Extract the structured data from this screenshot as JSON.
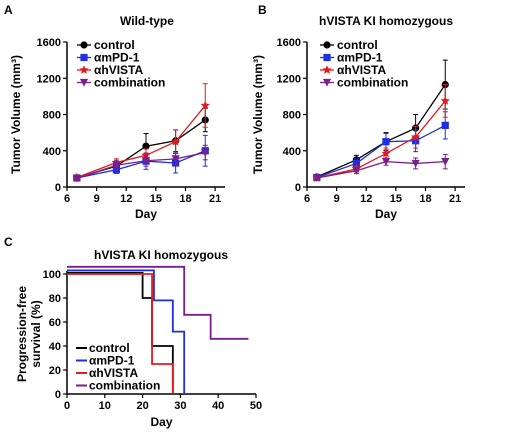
{
  "panel_letters": [
    "A",
    "B",
    "C"
  ],
  "colors": {
    "control": "#000000",
    "ampd1": "#1f2ee0",
    "ahvista": "#e41a1c",
    "combination": "#7b1f8c"
  },
  "chart_data": [
    {
      "id": "A",
      "type": "line",
      "title": "Wild-type",
      "xlabel": "Day",
      "ylabel": "Tumor Volume (mm³)",
      "xlim": [
        6,
        22
      ],
      "ylim": [
        0,
        1600
      ],
      "xticks": [
        "6",
        "9",
        "12",
        "15",
        "18",
        "21"
      ],
      "yticks": [
        "0",
        "400",
        "800",
        "1200",
        "1600"
      ],
      "legend_position": "top-left",
      "series": [
        {
          "name": "control",
          "color": "#000000",
          "marker": "circle",
          "x": [
            7,
            11,
            14,
            17,
            20
          ],
          "y": [
            100,
            230,
            450,
            510,
            740
          ],
          "err": [
            20,
            40,
            140,
            120,
            130
          ]
        },
        {
          "name": "αmPD-1",
          "color": "#1f2ee0",
          "marker": "square",
          "x": [
            7,
            11,
            14,
            17,
            20
          ],
          "y": [
            100,
            190,
            285,
            265,
            400
          ],
          "err": [
            20,
            40,
            90,
            110,
            170
          ]
        },
        {
          "name": "αhVISTA",
          "color": "#e41a1c",
          "marker": "star",
          "x": [
            7,
            11,
            14,
            17,
            20
          ],
          "y": [
            105,
            270,
            350,
            500,
            900
          ],
          "err": [
            20,
            40,
            70,
            130,
            240
          ]
        },
        {
          "name": "combination",
          "color": "#7b1f8c",
          "marker": "triangle-down",
          "x": [
            7,
            11,
            14,
            17,
            20
          ],
          "y": [
            95,
            240,
            290,
            310,
            380
          ],
          "err": [
            20,
            50,
            60,
            60,
            80
          ]
        }
      ]
    },
    {
      "id": "B",
      "type": "line",
      "title": "hVISTA KI homozygous",
      "xlabel": "Day",
      "ylabel": "Tumor Volume (mm³)",
      "xlim": [
        6,
        22
      ],
      "ylim": [
        0,
        1600
      ],
      "xticks": [
        "6",
        "9",
        "12",
        "15",
        "18",
        "21"
      ],
      "yticks": [
        "0",
        "400",
        "800",
        "1200",
        "1600"
      ],
      "legend_position": "top-left",
      "series": [
        {
          "name": "control",
          "color": "#000000",
          "marker": "circle",
          "x": [
            7,
            11,
            14,
            17,
            20
          ],
          "y": [
            110,
            300,
            500,
            650,
            1130
          ],
          "err": [
            20,
            50,
            100,
            150,
            270
          ]
        },
        {
          "name": "αmPD-1",
          "color": "#1f2ee0",
          "marker": "square",
          "x": [
            7,
            11,
            14,
            17,
            20
          ],
          "y": [
            105,
            260,
            500,
            510,
            680
          ],
          "err": [
            20,
            50,
            90,
            120,
            150
          ]
        },
        {
          "name": "αhVISTA",
          "color": "#e41a1c",
          "marker": "star",
          "x": [
            7,
            11,
            14,
            17,
            20
          ],
          "y": [
            100,
            200,
            370,
            550,
            950
          ],
          "err": [
            20,
            30,
            60,
            120,
            180
          ]
        },
        {
          "name": "combination",
          "color": "#7b1f8c",
          "marker": "triangle-down",
          "x": [
            7,
            11,
            14,
            17,
            20
          ],
          "y": [
            100,
            180,
            280,
            260,
            280
          ],
          "err": [
            20,
            30,
            40,
            60,
            80
          ]
        }
      ]
    },
    {
      "id": "C",
      "type": "line",
      "subtype": "step",
      "title": "hVISTA KI homozygous",
      "xlabel": "Day",
      "ylabel": "Progression-free survival (%)",
      "ylabel_lines": [
        "Progression-free",
        "survival (%)"
      ],
      "xlim": [
        0,
        50
      ],
      "ylim": [
        0,
        110
      ],
      "xticks": [
        "0",
        "10",
        "20",
        "30",
        "40",
        "50"
      ],
      "yticks": [
        "0",
        "20",
        "40",
        "60",
        "80",
        "100"
      ],
      "legend_position": "bottom-left",
      "series": [
        {
          "name": "control",
          "color": "#000000",
          "steps": [
            [
              0,
              101
            ],
            [
              20,
              80
            ],
            [
              22.5,
              40
            ],
            [
              28,
              0
            ]
          ]
        },
        {
          "name": "αmPD-1",
          "color": "#1f2ee0",
          "steps": [
            [
              0,
              103
            ],
            [
              23,
              78
            ],
            [
              28,
              52
            ],
            [
              31,
              0
            ]
          ]
        },
        {
          "name": "αhVISTA",
          "color": "#e41a1c",
          "steps": [
            [
              0,
              100
            ],
            [
              22.5,
              25
            ],
            [
              28,
              0
            ]
          ]
        },
        {
          "name": "combination",
          "color": "#7b1f8c",
          "steps": [
            [
              0,
              106
            ],
            [
              31,
              66
            ],
            [
              38,
              46
            ],
            [
              48,
              46
            ]
          ]
        }
      ]
    }
  ]
}
